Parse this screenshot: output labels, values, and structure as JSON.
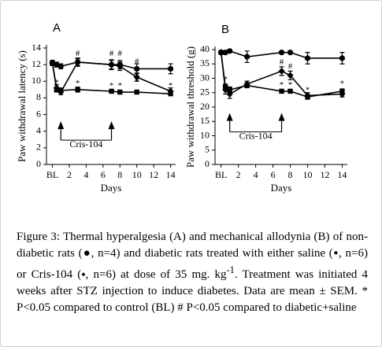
{
  "chart_data": [
    {
      "type": "line",
      "panel": "A",
      "y_label": "Paw withdrawal latency (s)",
      "x_label": "Days",
      "x": [
        0,
        0.5,
        1,
        3,
        7,
        8,
        10,
        14
      ],
      "xlim": [
        -0.7,
        14.6
      ],
      "xticks": [
        {
          "value": 0,
          "label": "BL"
        },
        2,
        4,
        6,
        8,
        10,
        12,
        14
      ],
      "ylim": [
        0,
        14
      ],
      "yticks": [
        0,
        2,
        4,
        6,
        8,
        10,
        12,
        14
      ],
      "series": [
        {
          "marker": "circle",
          "color": "#000000",
          "values": [
            12.2,
            12.0,
            11.8,
            12.3,
            12.0,
            12.0,
            11.5,
            11.5
          ],
          "errors": [
            0.3,
            0.3,
            0.3,
            0.5,
            0.6,
            0.5,
            0.6,
            0.6
          ]
        },
        {
          "marker": "square",
          "color": "#000000",
          "values": [
            12.2,
            9.0,
            8.9,
            9.0,
            8.8,
            8.7,
            8.7,
            8.5
          ],
          "errors": [
            0.3,
            0.3,
            0.3,
            0.3,
            0.2,
            0.2,
            0.2,
            0.2
          ]
        },
        {
          "marker": "diamond",
          "color": "#000000",
          "values": [
            12.2,
            9.2,
            8.7,
            12.3,
            12.0,
            11.8,
            10.5,
            8.8
          ],
          "errors": [
            0.3,
            0.4,
            0.3,
            0.4,
            0.5,
            0.5,
            0.5,
            0.4
          ]
        }
      ],
      "annotations": [
        {
          "text": "#",
          "x": 3,
          "y": 13.3
        },
        {
          "text": "#",
          "x": 7,
          "y": 13.3
        },
        {
          "text": "#",
          "x": 8,
          "y": 13.3
        },
        {
          "text": "#",
          "x": 10,
          "y": 12.3
        },
        {
          "text": "*",
          "x": 0.5,
          "y": 9.8
        },
        {
          "text": "*",
          "x": 3,
          "y": 9.7
        },
        {
          "text": "*",
          "x": 7,
          "y": 9.4
        },
        {
          "text": "*",
          "x": 8,
          "y": 9.4
        },
        {
          "text": "*",
          "x": 10,
          "y": 9.9
        },
        {
          "text": "*",
          "x": 14,
          "y": 9.4
        }
      ],
      "treatment": {
        "label": "Cris-104",
        "days": [
          1,
          7
        ]
      }
    },
    {
      "type": "line",
      "panel": "B",
      "y_label": "Paw withdrawal threshold (g)",
      "x_label": "Days",
      "x": [
        0,
        0.5,
        1,
        3,
        7,
        8,
        10,
        14
      ],
      "xlim": [
        -0.7,
        14.6
      ],
      "xticks": [
        {
          "value": 0,
          "label": "BL"
        },
        2,
        4,
        6,
        8,
        10,
        12,
        14
      ],
      "ylim": [
        0,
        40
      ],
      "yticks": [
        0,
        5,
        10,
        15,
        20,
        25,
        30,
        35,
        40
      ],
      "series": [
        {
          "marker": "circle",
          "color": "#000000",
          "values": [
            39.0,
            39.0,
            39.5,
            37.5,
            39.0,
            39.0,
            37.0,
            37.0
          ],
          "errors": [
            0.5,
            0.5,
            0.5,
            2.0,
            0.5,
            0.5,
            2.0,
            2.0
          ]
        },
        {
          "marker": "square",
          "color": "#000000",
          "values": [
            39.0,
            27.0,
            26.0,
            27.5,
            25.5,
            25.5,
            23.5,
            25.5
          ],
          "errors": [
            0.5,
            1.0,
            1.0,
            0.8,
            0.6,
            0.6,
            0.8,
            0.8
          ]
        },
        {
          "marker": "diamond",
          "color": "#000000",
          "values": [
            39.0,
            26.0,
            24.5,
            28.0,
            32.5,
            31.0,
            24.0,
            24.5
          ],
          "errors": [
            0.5,
            1.5,
            1.5,
            1.0,
            1.5,
            1.5,
            1.0,
            1.0
          ]
        }
      ],
      "annotations": [
        {
          "text": "#",
          "x": 7,
          "y": 35.5
        },
        {
          "text": "#",
          "x": 8,
          "y": 34.0
        },
        {
          "text": "*",
          "x": 0.5,
          "y": 29.5
        },
        {
          "text": "*",
          "x": 7,
          "y": 27.5
        },
        {
          "text": "*",
          "x": 8,
          "y": 27.5
        },
        {
          "text": "*",
          "x": 10,
          "y": 25.8
        },
        {
          "text": "*",
          "x": 14,
          "y": 28.0
        }
      ],
      "treatment": {
        "label": "Cris-104",
        "days": [
          1,
          7
        ]
      }
    }
  ],
  "caption": {
    "text_before": "Figure 3: Thermal hyperalgesia (A) and mechanical allodynia (B) of non-diabetic rats (●, n=4) and diabetic rats treated with either saline (▪, n=6) or Cris-104 (⬩, n=6) at dose of 35 mg. kg",
    "superscript": "-1",
    "text_after": ". Treatment was initiated 4 weeks after STZ injection to induce diabetes. Data are mean ± SEM. * P<0.05 compared to control (BL) # P<0.05 compared to diabetic+saline"
  }
}
